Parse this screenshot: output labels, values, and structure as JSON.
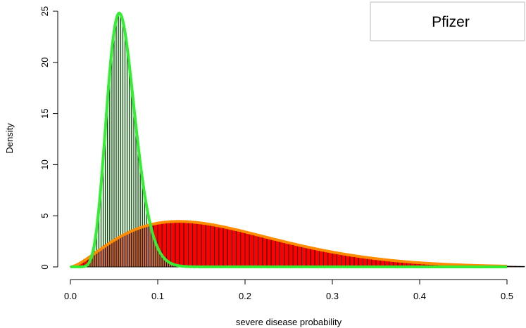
{
  "chart_data": {
    "type": "histogram",
    "title": "",
    "xlabel": "severe disease probability",
    "ylabel": "Density",
    "xlim": [
      0.0,
      0.5
    ],
    "ylim": [
      0,
      25
    ],
    "x_ticks": [
      "0.0",
      "0.1",
      "0.2",
      "0.3",
      "0.4",
      "0.5"
    ],
    "y_ticks": [
      "0",
      "5",
      "10",
      "15",
      "20",
      "25"
    ],
    "legend": {
      "position": "top-right",
      "entries": [
        "Pfizer"
      ]
    },
    "grid": false,
    "colors": {
      "histogram_wide_fill": "#ff0000",
      "histogram_narrow_fill": "rgba(144,238,144,0.45)",
      "bar_border": "#000000",
      "curve_wide": "#ff8c00",
      "curve_narrow": "#33ee33"
    },
    "series": [
      {
        "kind": "histogram",
        "fill": "red",
        "bin_width": 0.005,
        "distribution": "beta",
        "alpha": 2.6,
        "beta": 12.3,
        "x_range": [
          0.0,
          0.52
        ]
      },
      {
        "kind": "histogram",
        "fill": "light-green",
        "bin_width": 0.0025,
        "distribution": "beta",
        "alpha": 12.5,
        "beta": 195,
        "x_range": [
          0.0,
          0.5
        ]
      },
      {
        "kind": "density-line",
        "color": "orange",
        "distribution": "beta",
        "alpha": 2.6,
        "beta": 12.3,
        "x_range": [
          0.0,
          0.5
        ]
      },
      {
        "kind": "density-line",
        "color": "green",
        "distribution": "beta",
        "alpha": 12.5,
        "beta": 195,
        "x_range": [
          0.0,
          0.5
        ]
      }
    ]
  }
}
